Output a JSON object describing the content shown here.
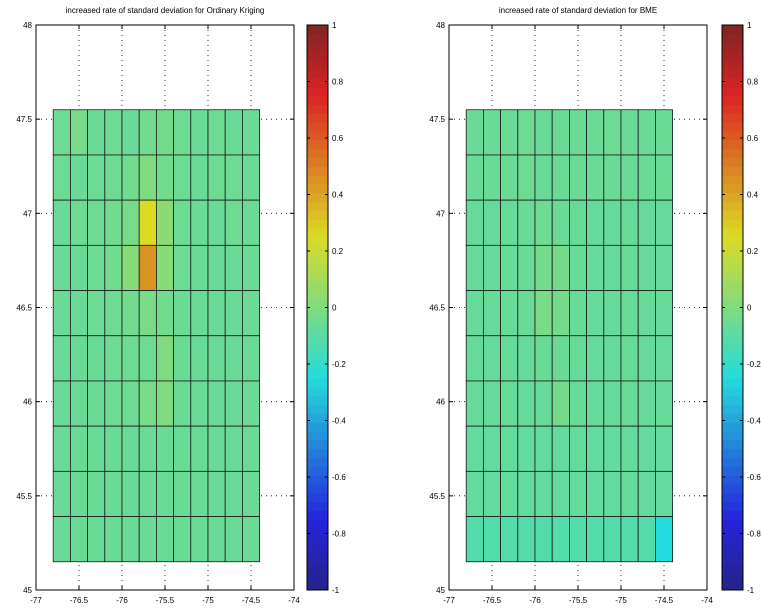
{
  "chart_data": [
    {
      "type": "heatmap",
      "title": "increased rate of standard deviation for Ordinary Kriging",
      "xlim": [
        -77,
        -74
      ],
      "ylim": [
        45,
        48
      ],
      "xticks": [
        "-77",
        "-76.5",
        "-76",
        "-75.5",
        "-75",
        "-74.5",
        "-74"
      ],
      "yticks": [
        "45",
        "45.5",
        "46",
        "46.5",
        "47",
        "47.5",
        "48"
      ],
      "grid": true,
      "colorbar": {
        "range": [
          -1,
          1
        ],
        "ticks": [
          "1",
          "0.8",
          "0.6",
          "0.4",
          "0.2",
          "0",
          "-0.2",
          "-0.4",
          "-0.6",
          "-0.8",
          "-1"
        ]
      },
      "x_centers": [
        -76.7,
        -76.5,
        -76.3,
        -76.1,
        -75.9,
        -75.7,
        -75.5,
        -75.3,
        -75.1,
        -74.9,
        -74.7,
        -74.5
      ],
      "y_centers": [
        47.43,
        47.19,
        46.95,
        46.71,
        46.47,
        46.23,
        45.99,
        45.75,
        45.51,
        45.27
      ],
      "values": [
        [
          -0.05,
          -0.02,
          -0.06,
          -0.05,
          -0.06,
          -0.04,
          -0.03,
          -0.05,
          -0.06,
          -0.05,
          -0.06,
          -0.06
        ],
        [
          -0.05,
          -0.06,
          -0.05,
          -0.05,
          -0.04,
          0.0,
          -0.04,
          -0.05,
          -0.06,
          -0.05,
          -0.05,
          -0.06
        ],
        [
          -0.06,
          -0.05,
          -0.05,
          -0.04,
          -0.02,
          0.25,
          0.03,
          -0.05,
          -0.06,
          -0.06,
          -0.05,
          -0.06
        ],
        [
          -0.06,
          -0.06,
          -0.05,
          -0.04,
          0.02,
          0.45,
          0.02,
          -0.05,
          -0.06,
          -0.06,
          -0.06,
          -0.06
        ],
        [
          -0.06,
          -0.06,
          -0.05,
          -0.05,
          -0.04,
          -0.02,
          -0.04,
          -0.06,
          -0.06,
          -0.06,
          -0.06,
          -0.06
        ],
        [
          -0.06,
          -0.06,
          -0.06,
          -0.05,
          -0.05,
          -0.05,
          0.0,
          -0.06,
          -0.06,
          -0.06,
          -0.06,
          -0.06
        ],
        [
          -0.06,
          -0.06,
          -0.06,
          -0.05,
          -0.05,
          -0.02,
          0.0,
          -0.06,
          -0.06,
          -0.06,
          -0.06,
          -0.06
        ],
        [
          -0.06,
          -0.06,
          -0.06,
          -0.06,
          -0.06,
          -0.06,
          -0.06,
          -0.06,
          -0.06,
          -0.06,
          -0.06,
          -0.06
        ],
        [
          -0.06,
          -0.06,
          -0.06,
          -0.06,
          -0.06,
          -0.06,
          -0.06,
          -0.06,
          -0.06,
          -0.06,
          -0.06,
          -0.06
        ],
        [
          -0.06,
          -0.06,
          -0.06,
          -0.06,
          -0.06,
          -0.06,
          -0.06,
          -0.06,
          -0.06,
          -0.06,
          -0.06,
          -0.06
        ]
      ]
    },
    {
      "type": "heatmap",
      "title": "increased rate of standard deviation for BME",
      "xlim": [
        -77,
        -74
      ],
      "ylim": [
        45,
        48
      ],
      "xticks": [
        "-77",
        "-76.5",
        "-76",
        "-75.5",
        "-75",
        "-74.5",
        "-74"
      ],
      "yticks": [
        "45",
        "45.5",
        "46",
        "46.5",
        "47",
        "47.5",
        "48"
      ],
      "grid": true,
      "colorbar": {
        "range": [
          -1,
          1
        ],
        "ticks": [
          "1",
          "0.8",
          "0.6",
          "0.4",
          "0.2",
          "0",
          "-0.2",
          "-0.4",
          "-0.6",
          "-0.8",
          "-1"
        ]
      },
      "x_centers": [
        -76.7,
        -76.5,
        -76.3,
        -76.1,
        -75.9,
        -75.7,
        -75.5,
        -75.3,
        -75.1,
        -74.9,
        -74.7,
        -74.5
      ],
      "y_centers": [
        47.43,
        47.19,
        46.95,
        46.71,
        46.47,
        46.23,
        45.99,
        45.75,
        45.51,
        45.27
      ],
      "values": [
        [
          -0.06,
          -0.06,
          -0.06,
          -0.05,
          -0.06,
          -0.06,
          -0.06,
          -0.06,
          -0.05,
          -0.06,
          -0.06,
          -0.06
        ],
        [
          -0.06,
          -0.06,
          -0.06,
          -0.05,
          -0.06,
          -0.06,
          -0.06,
          -0.06,
          -0.06,
          -0.06,
          -0.06,
          -0.06
        ],
        [
          -0.07,
          -0.07,
          -0.07,
          -0.06,
          -0.05,
          -0.06,
          -0.07,
          -0.07,
          -0.07,
          -0.07,
          -0.07,
          -0.07
        ],
        [
          -0.07,
          -0.07,
          -0.07,
          -0.06,
          -0.03,
          -0.03,
          -0.07,
          -0.07,
          -0.07,
          -0.07,
          -0.07,
          -0.07
        ],
        [
          -0.07,
          -0.07,
          -0.07,
          -0.06,
          -0.02,
          -0.03,
          -0.07,
          -0.07,
          -0.07,
          -0.07,
          -0.07,
          -0.07
        ],
        [
          -0.07,
          -0.07,
          -0.07,
          -0.07,
          -0.06,
          -0.06,
          -0.07,
          -0.07,
          -0.07,
          -0.07,
          -0.07,
          -0.07
        ],
        [
          -0.07,
          -0.07,
          -0.07,
          -0.07,
          -0.07,
          -0.03,
          -0.07,
          -0.07,
          -0.07,
          -0.07,
          -0.07,
          -0.07
        ],
        [
          -0.08,
          -0.08,
          -0.08,
          -0.08,
          -0.08,
          -0.08,
          -0.08,
          -0.08,
          -0.08,
          -0.08,
          -0.08,
          -0.08
        ],
        [
          -0.08,
          -0.08,
          -0.08,
          -0.08,
          -0.08,
          -0.08,
          -0.08,
          -0.08,
          -0.08,
          -0.08,
          -0.08,
          -0.08
        ],
        [
          -0.12,
          -0.12,
          -0.12,
          -0.12,
          -0.12,
          -0.12,
          -0.12,
          -0.12,
          -0.12,
          -0.12,
          -0.12,
          -0.25
        ]
      ]
    }
  ]
}
